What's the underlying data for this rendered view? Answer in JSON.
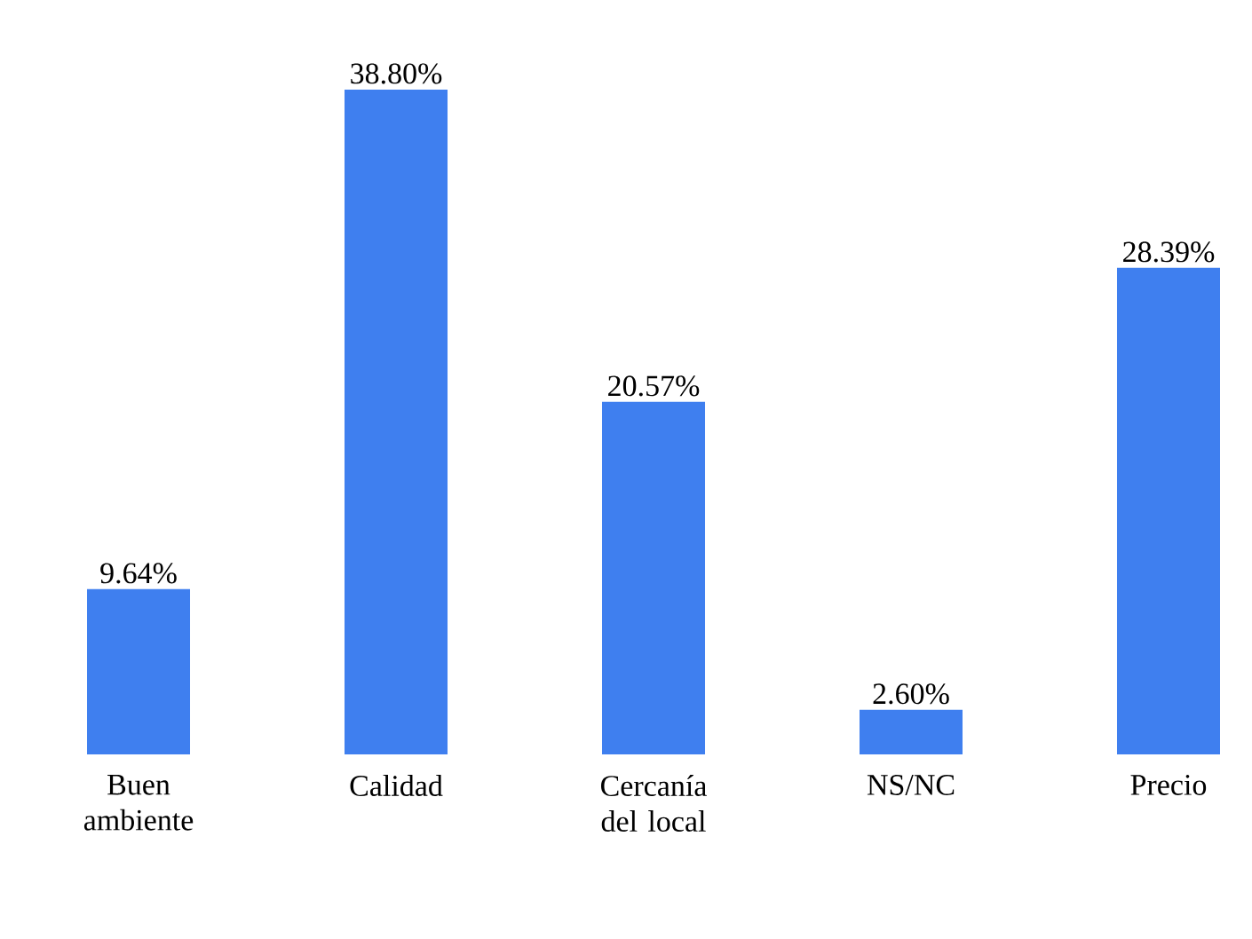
{
  "chart_data": {
    "type": "bar",
    "categories": [
      "Buen ambiente",
      "Calidad",
      "Cercanía del local",
      "NS/NC",
      "Precio"
    ],
    "values": [
      9.64,
      38.8,
      20.57,
      2.6,
      28.39
    ],
    "value_labels": [
      "9.64%",
      "38.80%",
      "20.57%",
      "2.60%",
      "28.39%"
    ],
    "color": "#3f7fef"
  }
}
